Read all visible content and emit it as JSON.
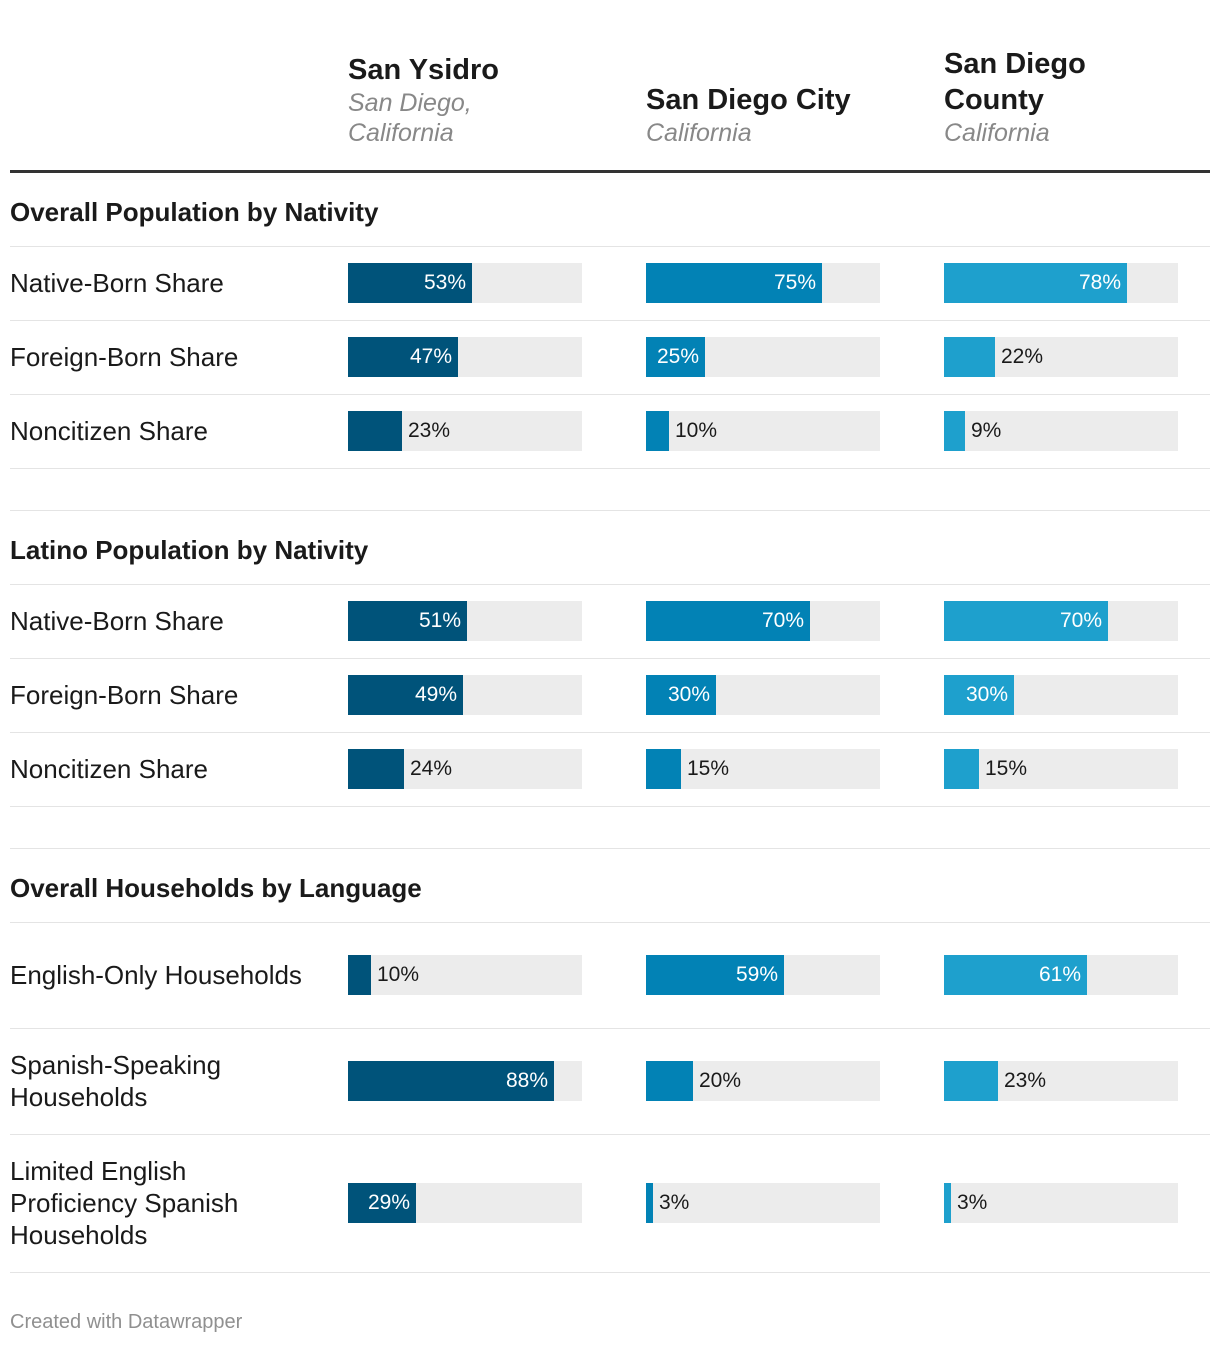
{
  "columns": [
    {
      "title": "San Ysidro",
      "subtitle": "San Diego, California",
      "color": "#00537a"
    },
    {
      "title": "San Diego City",
      "subtitle": "California",
      "color": "#0282b5"
    },
    {
      "title": "San Diego County",
      "subtitle": "California",
      "color": "#1ea0cd"
    }
  ],
  "chart_data": {
    "type": "bar",
    "title": "",
    "xlabel": "",
    "ylabel": "",
    "xlim": [
      0,
      100
    ],
    "unit": "%",
    "series": [
      {
        "name": "San Ysidro",
        "subtitle": "San Diego, California"
      },
      {
        "name": "San Diego City",
        "subtitle": "California"
      },
      {
        "name": "San Diego County",
        "subtitle": "California"
      }
    ],
    "sections": [
      {
        "title": "Overall Population by Nativity",
        "rows": [
          {
            "label": "Native-Born Share",
            "values": [
              53,
              75,
              78
            ]
          },
          {
            "label": "Foreign-Born Share",
            "values": [
              47,
              25,
              22
            ]
          },
          {
            "label": "Noncitizen Share",
            "values": [
              23,
              10,
              9
            ]
          }
        ]
      },
      {
        "title": "Latino Population by Nativity",
        "rows": [
          {
            "label": "Native-Born Share",
            "values": [
              51,
              70,
              70
            ]
          },
          {
            "label": "Foreign-Born Share",
            "values": [
              49,
              30,
              30
            ]
          },
          {
            "label": "Noncitizen Share",
            "values": [
              24,
              15,
              15
            ]
          }
        ]
      },
      {
        "title": "Overall Households by Language",
        "rows": [
          {
            "label": "English-Only Households",
            "values": [
              10,
              59,
              61
            ]
          },
          {
            "label": "Spanish-Speaking Households",
            "values": [
              88,
              20,
              23
            ]
          },
          {
            "label": "Limited English Proficiency Spanish Households",
            "values": [
              29,
              3,
              3
            ]
          }
        ]
      }
    ]
  },
  "footer": "Created with Datawrapper"
}
